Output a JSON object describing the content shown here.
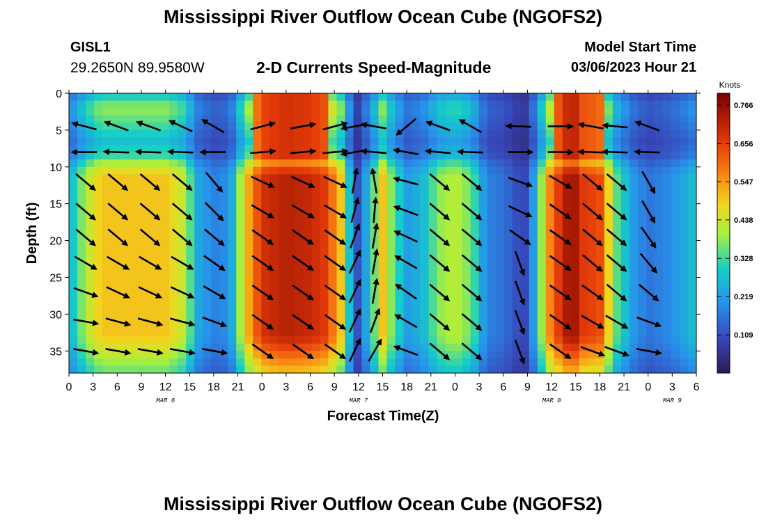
{
  "header": {
    "title": "Mississippi River Outflow Ocean Cube (NGOFS2)",
    "station_id": "GISL1",
    "station_coords": "29.2650N  89.9580W",
    "plot_title": "2-D Currents Speed-Magnitude",
    "model_start_label": "Model Start Time",
    "model_start_value": "03/06/2023 Hour 21"
  },
  "footer": {
    "title": "Mississippi River Outflow Ocean Cube (NGOFS2)"
  },
  "chart_data": {
    "type": "heatmap",
    "title": "2-D Currents Speed-Magnitude",
    "xlabel": "Forecast Time(Z)",
    "ylabel": "Depth (ft)",
    "x_range_hours": [
      0,
      78
    ],
    "y_range_ft": [
      0,
      38
    ],
    "y_reversed": true,
    "x_ticks": [
      "0",
      "3",
      "6",
      "9",
      "12",
      "15",
      "18",
      "21",
      "0",
      "3",
      "6",
      "9",
      "12",
      "15",
      "18",
      "21",
      "0",
      "3",
      "6",
      "9",
      "12",
      "15",
      "18",
      "21",
      "0",
      "3",
      "6"
    ],
    "y_ticks": [
      0,
      5,
      10,
      15,
      20,
      25,
      30,
      35
    ],
    "date_labels": [
      {
        "text": "MAR 6",
        "hour": 12
      },
      {
        "text": "MAR 7",
        "hour": 36
      },
      {
        "text": "MAR 8",
        "hour": 60
      },
      {
        "text": "MAR 9",
        "hour": 75
      }
    ],
    "colorbar": {
      "unit": "Knots",
      "ticks": [
        "0.766",
        "0.656",
        "0.547",
        "0.438",
        "0.328",
        "0.219",
        "0.109"
      ],
      "range": [
        0.0,
        0.8
      ]
    },
    "speed_profile": {
      "hours": [
        0,
        2,
        4,
        6,
        9,
        12,
        14,
        15,
        16,
        18,
        20,
        22,
        24,
        27,
        30,
        32,
        34,
        35,
        36,
        37,
        38,
        39,
        40,
        42,
        44,
        45,
        46,
        48,
        50,
        51,
        52,
        54,
        56,
        57,
        58,
        60,
        62,
        63,
        64,
        66,
        68,
        70,
        72,
        75,
        78
      ],
      "values": [
        0.25,
        0.4,
        0.5,
        0.5,
        0.5,
        0.5,
        0.44,
        0.35,
        0.24,
        0.18,
        0.2,
        0.5,
        0.68,
        0.72,
        0.7,
        0.66,
        0.48,
        0.24,
        0.1,
        0.24,
        0.36,
        0.5,
        0.38,
        0.22,
        0.26,
        0.32,
        0.38,
        0.42,
        0.36,
        0.26,
        0.18,
        0.16,
        0.1,
        0.1,
        0.26,
        0.6,
        0.74,
        0.74,
        0.66,
        0.64,
        0.35,
        0.22,
        0.16,
        0.2,
        0.28
      ]
    },
    "vector_depths_ft": [
      4.5,
      8,
      12,
      16,
      19.5,
      23,
      27,
      31,
      35
    ],
    "vector_columns": [
      {
        "hour": 2,
        "angles": [
          165,
          180,
          320,
          320,
          320,
          330,
          340,
          350,
          350
        ]
      },
      {
        "hour": 6,
        "angles": [
          160,
          178,
          320,
          320,
          320,
          330,
          335,
          345,
          350
        ]
      },
      {
        "hour": 10,
        "angles": [
          160,
          178,
          320,
          320,
          320,
          330,
          335,
          345,
          350
        ]
      },
      {
        "hour": 14,
        "angles": [
          155,
          178,
          320,
          320,
          320,
          330,
          335,
          345,
          350
        ]
      },
      {
        "hour": 18,
        "angles": [
          150,
          180,
          310,
          315,
          320,
          325,
          330,
          340,
          350
        ]
      },
      {
        "hour": 24,
        "angles": [
          15,
          5,
          335,
          330,
          325,
          325,
          325,
          325,
          325
        ]
      },
      {
        "hour": 29,
        "angles": [
          10,
          5,
          335,
          330,
          325,
          325,
          325,
          325,
          325
        ]
      },
      {
        "hour": 33,
        "angles": [
          15,
          5,
          335,
          330,
          325,
          325,
          325,
          325,
          325
        ]
      },
      {
        "hour": 35.5,
        "angles": [
          190,
          190,
          80,
          75,
          70,
          65,
          65,
          65,
          65
        ]
      },
      {
        "hour": 38,
        "angles": [
          170,
          175,
          100,
          85,
          80,
          80,
          80,
          70,
          60
        ]
      },
      {
        "hour": 42,
        "angles": [
          220,
          170,
          165,
          160,
          155,
          150,
          145,
          150,
          160
        ]
      },
      {
        "hour": 46,
        "angles": [
          160,
          175,
          320,
          320,
          320,
          320,
          320,
          320,
          320
        ]
      },
      {
        "hour": 50,
        "angles": [
          150,
          178,
          320,
          320,
          320,
          320,
          320,
          320,
          320
        ]
      },
      {
        "hour": 56,
        "angles": [
          178,
          0,
          340,
          335,
          325,
          290,
          290,
          290,
          290
        ]
      },
      {
        "hour": 61,
        "angles": [
          0,
          0,
          330,
          325,
          325,
          325,
          325,
          325,
          325
        ]
      },
      {
        "hour": 65,
        "angles": [
          170,
          178,
          320,
          320,
          320,
          320,
          325,
          330,
          340
        ]
      },
      {
        "hour": 68,
        "angles": [
          175,
          178,
          320,
          320,
          320,
          320,
          320,
          330,
          340
        ]
      },
      {
        "hour": 72,
        "angles": [
          160,
          178,
          300,
          300,
          305,
          310,
          320,
          340,
          350
        ]
      }
    ]
  }
}
